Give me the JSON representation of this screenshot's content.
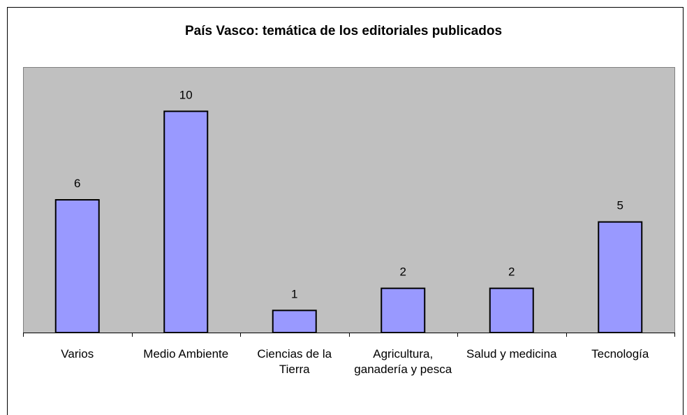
{
  "chart_data": {
    "type": "bar",
    "title": "País Vasco: temática de los editoriales publicados",
    "categories": [
      "Varios",
      "Medio Ambiente",
      "Ciencias de la Tierra",
      "Agricultura, ganadería y pesca",
      "Salud y medicina",
      "Tecnología"
    ],
    "values": [
      6,
      10,
      1,
      2,
      2,
      5
    ],
    "color": "#9999ff",
    "ylim": [
      0,
      12
    ],
    "grid": false
  }
}
